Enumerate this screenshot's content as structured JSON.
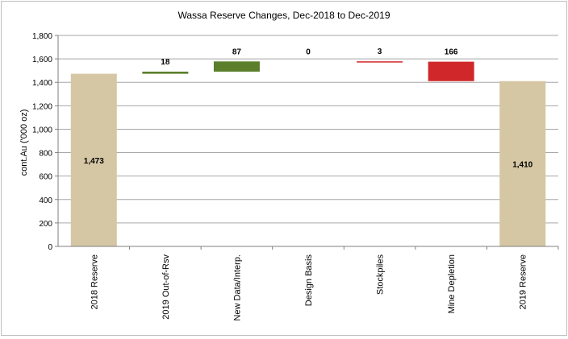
{
  "chart_data": {
    "type": "waterfall",
    "title": "Wassa Reserve Changes, Dec-2018 to Dec-2019",
    "xlabel": "",
    "ylabel": "cont.Au ('000 oz)",
    "ylim": [
      0,
      1800
    ],
    "y_ticks": [
      "0",
      "200",
      "400",
      "600",
      "800",
      "1,000",
      "1,200",
      "1,400",
      "1,600",
      "1,800"
    ],
    "grid": true,
    "legend": "none",
    "categories": [
      "2018 Reserve",
      "2019 Out-of-Rsv",
      "New Data/Interp.",
      "Design Basis",
      "Stockpiles",
      "Mine Depletion",
      "2019 Reserve"
    ],
    "bars": [
      {
        "category": "2018 Reserve",
        "kind": "total",
        "start": 0,
        "end": 1473,
        "label": "1,473"
      },
      {
        "category": "2019 Out-of-Rsv",
        "kind": "increase",
        "start": 1473,
        "end": 1491,
        "label": "18"
      },
      {
        "category": "New Data/Interp.",
        "kind": "increase",
        "start": 1491,
        "end": 1578,
        "label": "87"
      },
      {
        "category": "Design Basis",
        "kind": "increase",
        "start": 1578,
        "end": 1578,
        "label": "0"
      },
      {
        "category": "Stockpiles",
        "kind": "decrease",
        "start": 1579,
        "end": 1576,
        "label": "3"
      },
      {
        "category": "Mine Depletion",
        "kind": "decrease",
        "start": 1576,
        "end": 1410,
        "label": "166"
      },
      {
        "category": "2019 Reserve",
        "kind": "total",
        "start": 0,
        "end": 1410,
        "label": "1,410"
      }
    ],
    "colors": {
      "total": "#d5c7a4",
      "increase": "#5b7f2b",
      "decrease": "#d0282a",
      "grid": "#a6a6a6",
      "axis": "#7f7f7f",
      "text": "#000000"
    }
  }
}
